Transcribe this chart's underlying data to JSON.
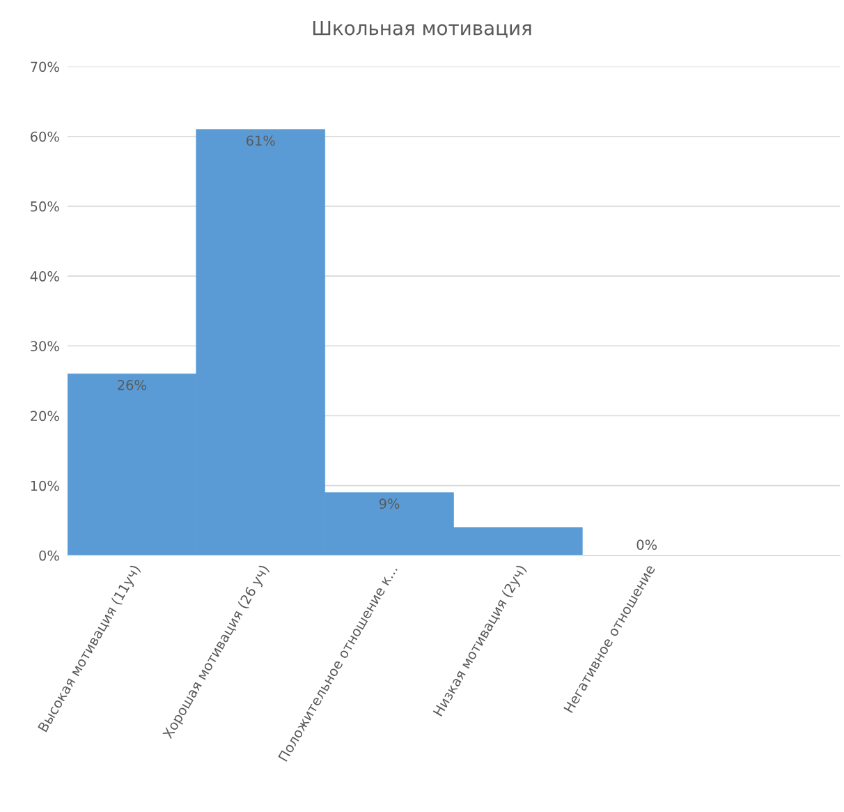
{
  "chart_data": {
    "type": "bar",
    "title": "Школьная мотивация",
    "categories": [
      "Высокая мотивация (11уч)",
      "Хорошая мотивация (26 уч)",
      "Положительное отношение к...",
      "Низкая мотивация (2уч)",
      "Негативное отношение",
      null
    ],
    "series": [
      {
        "color": "#5b9bd5",
        "values": [
          26,
          61,
          9,
          4,
          0,
          null
        ],
        "value_labels": [
          "26%",
          "61%",
          "9%",
          null,
          "0%",
          null
        ]
      }
    ],
    "ylim": [
      0,
      70
    ],
    "yticks": [
      {
        "value": 0,
        "label": "0%"
      },
      {
        "value": 10,
        "label": "10%"
      },
      {
        "value": 20,
        "label": "20%"
      },
      {
        "value": 30,
        "label": "30%"
      },
      {
        "value": 40,
        "label": "40%"
      },
      {
        "value": 50,
        "label": "50%"
      },
      {
        "value": 60,
        "label": "60%"
      },
      {
        "value": 70,
        "label": "70%"
      }
    ],
    "grid": "y",
    "legend": false
  }
}
